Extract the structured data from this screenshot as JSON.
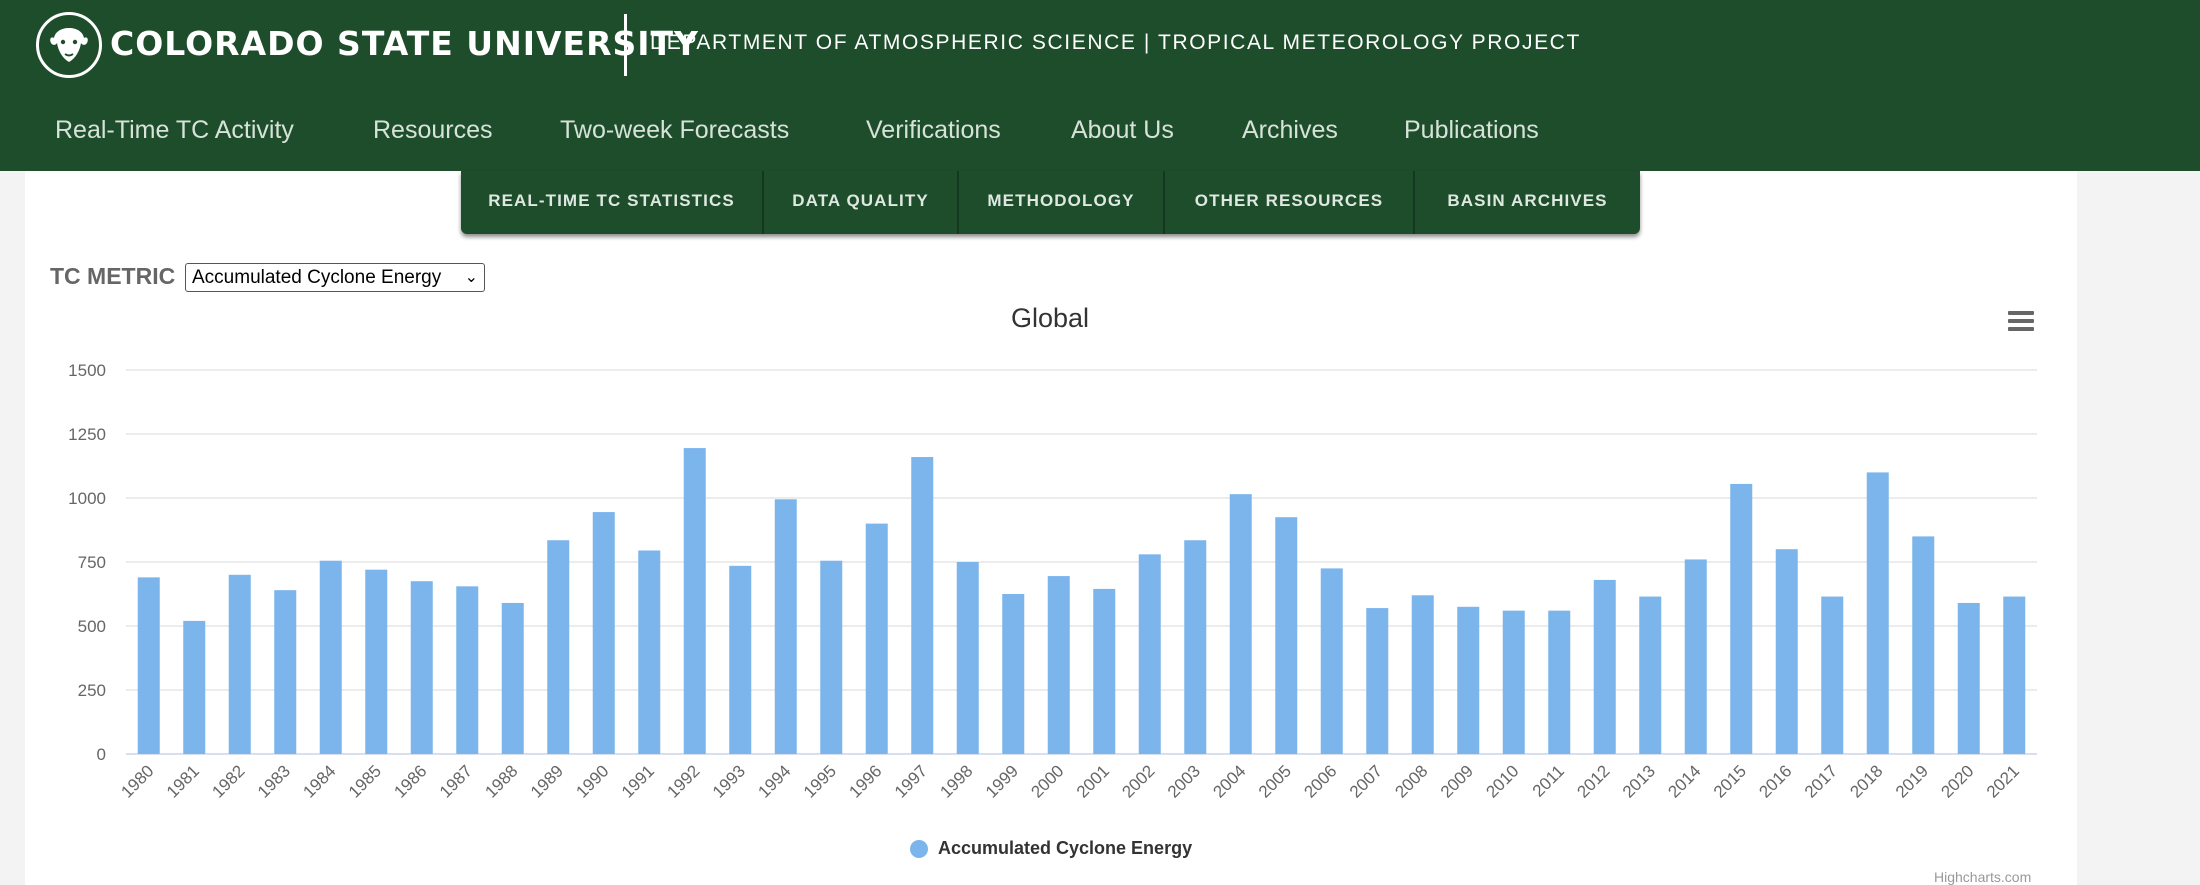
{
  "header": {
    "university": "COLORADO STATE UNIVERSITY",
    "department": "DEPARTMENT OF ATMOSPHERIC SCIENCE | TROPICAL METEOROLOGY PROJECT",
    "logo_icon": "ram-head-icon"
  },
  "main_nav": [
    "Real-Time TC Activity",
    "Resources",
    "Two-week Forecasts",
    "Verifications",
    "About Us",
    "Archives",
    "Publications"
  ],
  "sub_nav": [
    "REAL-TIME TC STATISTICS",
    "DATA QUALITY",
    "METHODOLOGY",
    "OTHER RESOURCES",
    "BASIN ARCHIVES"
  ],
  "metric": {
    "label": "TC METRIC",
    "selected": "Accumulated Cyclone Energy"
  },
  "colors": {
    "brand_green": "#1e4d2b",
    "bar": "#7cb5ec"
  },
  "chart_data": {
    "type": "bar",
    "title": "Global",
    "xlabel": "",
    "ylabel": "",
    "ylim": [
      0,
      1500
    ],
    "yticks": [
      "0",
      "250",
      "500",
      "750",
      "1000",
      "1250",
      "1500"
    ],
    "grid": true,
    "legend": "bottom-center",
    "categories": [
      "1980",
      "1981",
      "1982",
      "1983",
      "1984",
      "1985",
      "1986",
      "1987",
      "1988",
      "1989",
      "1990",
      "1991",
      "1992",
      "1993",
      "1994",
      "1995",
      "1996",
      "1997",
      "1998",
      "1999",
      "2000",
      "2001",
      "2002",
      "2003",
      "2004",
      "2005",
      "2006",
      "2007",
      "2008",
      "2009",
      "2010",
      "2011",
      "2012",
      "2013",
      "2014",
      "2015",
      "2016",
      "2017",
      "2018",
      "2019",
      "2020",
      "2021"
    ],
    "series": [
      {
        "name": "Accumulated Cyclone Energy",
        "values": [
          690,
          520,
          700,
          640,
          755,
          720,
          675,
          655,
          590,
          835,
          945,
          795,
          1195,
          735,
          995,
          755,
          900,
          1160,
          750,
          625,
          695,
          645,
          780,
          835,
          1015,
          925,
          725,
          570,
          620,
          575,
          560,
          560,
          680,
          615,
          760,
          1055,
          800,
          615,
          1100,
          850,
          590,
          615
        ]
      }
    ],
    "credits": "Highcharts.com"
  }
}
